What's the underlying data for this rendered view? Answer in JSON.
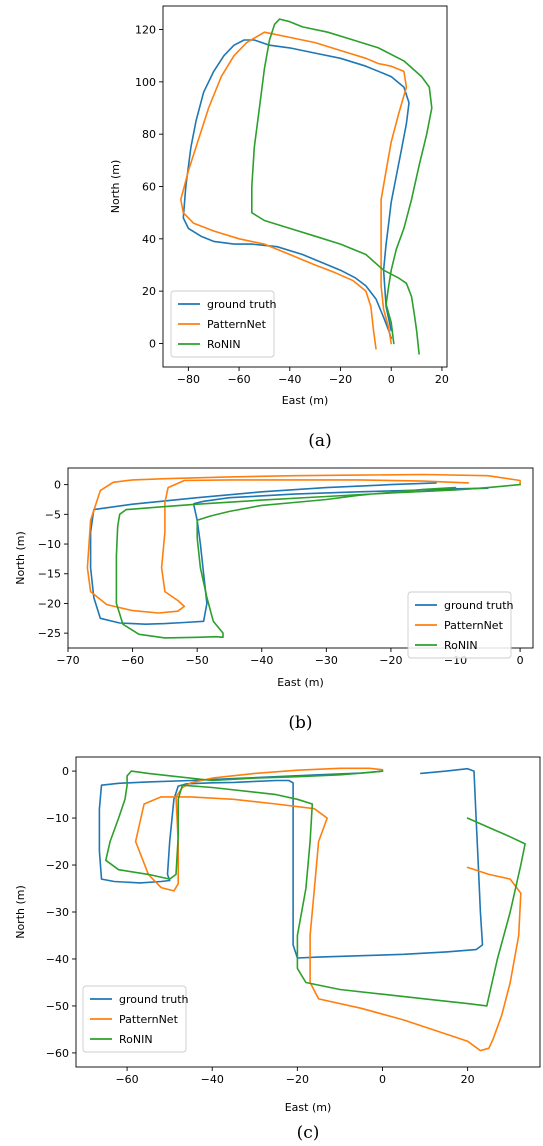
{
  "chart_data": [
    {
      "type": "line",
      "caption": "(a)",
      "xlabel": "East (m)",
      "ylabel": "North (m)",
      "xlim": [
        -90,
        22
      ],
      "ylim": [
        -9,
        129
      ],
      "xticks": [
        -80,
        -60,
        -40,
        -20,
        0,
        20
      ],
      "yticks": [
        0,
        20,
        40,
        60,
        80,
        100,
        120
      ],
      "legend_position": "lower-left",
      "series": [
        {
          "name": "ground truth",
          "color": "#1f77b4",
          "x": [
            0,
            -1,
            -3,
            -6,
            -10,
            -14,
            -20,
            -35,
            -45,
            -55,
            -62,
            -70,
            -75,
            -80,
            -82,
            -81,
            -79,
            -77,
            -74,
            -70,
            -66,
            -62,
            -58,
            -54,
            -48,
            -40,
            -30,
            -20,
            -10,
            0,
            5,
            7,
            6,
            4,
            2,
            0,
            -1,
            -2,
            -3,
            -2,
            0
          ],
          "y": [
            2,
            5,
            10,
            17,
            22,
            25,
            28,
            34,
            37,
            38,
            38,
            39,
            41,
            44,
            48,
            60,
            75,
            85,
            96,
            104,
            110,
            114,
            116,
            116,
            114,
            113,
            111,
            109,
            106,
            102,
            98,
            92,
            84,
            74,
            64,
            54,
            46,
            38,
            28,
            14,
            5
          ]
        },
        {
          "name": "PatternNet",
          "color": "#ff7f0e",
          "x": [
            -6,
            -7,
            -8,
            -10,
            -15,
            -22,
            -30,
            -40,
            -50,
            -60,
            -70,
            -78,
            -82,
            -83,
            -80,
            -76,
            -72,
            -67,
            -62,
            -57,
            -50,
            -40,
            -30,
            -20,
            -10,
            -5,
            0,
            5,
            6,
            3,
            0,
            -2,
            -4,
            -4,
            -4,
            -4,
            -3,
            -1,
            0
          ],
          "y": [
            -2,
            5,
            14,
            20,
            24,
            27,
            30,
            34,
            38,
            40,
            43,
            46,
            50,
            55,
            66,
            78,
            90,
            102,
            110,
            115,
            119,
            117,
            115,
            112,
            109,
            107,
            106,
            104,
            98,
            88,
            77,
            66,
            55,
            44,
            33,
            22,
            13,
            6,
            0
          ]
        },
        {
          "name": "RoNIN",
          "color": "#2ca02c",
          "x": [
            11,
            10,
            9,
            8,
            6,
            3,
            -3,
            -10,
            -20,
            -30,
            -40,
            -50,
            -55,
            -55,
            -54,
            -52,
            -50,
            -48,
            -46,
            -44,
            -40,
            -35,
            -25,
            -15,
            -5,
            5,
            12,
            15,
            16,
            14,
            11,
            8,
            5,
            2,
            0,
            -1,
            -2,
            0,
            1
          ],
          "y": [
            -4,
            5,
            12,
            18,
            23,
            25,
            28,
            34,
            38,
            41,
            44,
            47,
            50,
            60,
            75,
            90,
            105,
            116,
            122,
            124,
            123,
            121,
            119,
            116,
            113,
            108,
            102,
            98,
            90,
            80,
            68,
            55,
            44,
            36,
            28,
            22,
            15,
            8,
            0
          ]
        }
      ]
    },
    {
      "type": "line",
      "caption": "(b)",
      "xlabel": "East (m)",
      "ylabel": "North (m)",
      "xlim": [
        -70,
        2
      ],
      "ylim": [
        -27.5,
        2.8
      ],
      "xticks": [
        -70,
        -60,
        -50,
        -40,
        -30,
        -20,
        -10,
        0
      ],
      "yticks": [
        0,
        -5,
        -10,
        -15,
        -20,
        -25
      ],
      "legend_position": "lower-right",
      "series": [
        {
          "name": "ground truth",
          "color": "#1f77b4",
          "x": [
            -13,
            -20,
            -30,
            -40,
            -50,
            -60,
            -66,
            -66.5,
            -66.5,
            -66,
            -65,
            -62,
            -58,
            -55,
            -52,
            -49,
            -48.5,
            -49,
            -49.5,
            -50,
            -50.5,
            -50.5,
            -49,
            -45,
            -35,
            -25,
            -15,
            -8,
            -5,
            -10
          ],
          "y": [
            0.3,
            0,
            -0.5,
            -1.2,
            -2.2,
            -3.3,
            -4.2,
            -8,
            -14,
            -19,
            -22.5,
            -23.3,
            -23.5,
            -23.4,
            -23.2,
            -23,
            -20,
            -15,
            -10,
            -6,
            -3.5,
            -3.2,
            -2.8,
            -2.2,
            -1.6,
            -1.2,
            -0.9,
            -0.7,
            -0.6,
            -0.7
          ]
        },
        {
          "name": "PatternNet",
          "color": "#ff7f0e",
          "x": [
            -8,
            -15,
            -25,
            -35,
            -45,
            -52,
            -54.5,
            -55,
            -55,
            -55.5,
            -55,
            -53,
            -52,
            -53,
            -56,
            -60,
            -64,
            -66.5,
            -67,
            -66.5,
            -65,
            -63,
            -60,
            -55,
            -45,
            -35,
            -25,
            -15,
            -5,
            0,
            0
          ],
          "y": [
            0.3,
            0.6,
            0.8,
            0.8,
            0.8,
            0.7,
            -0.5,
            -3,
            -8,
            -14,
            -18,
            -19.5,
            -20.5,
            -21.3,
            -21.6,
            -21.2,
            -20.2,
            -18,
            -14,
            -6,
            -1,
            0.4,
            0.8,
            1.0,
            1.3,
            1.5,
            1.6,
            1.7,
            1.5,
            0.7,
            0
          ]
        },
        {
          "name": "RoNIN",
          "color": "#2ca02c",
          "x": [
            -10,
            -15,
            -20,
            -25,
            -30,
            -35,
            -40,
            -45,
            -48,
            -50,
            -50,
            -49.5,
            -48.5,
            -47.5,
            -46,
            -46,
            -47,
            -50,
            -55,
            -59,
            -61.5,
            -62.5,
            -62.5,
            -62.3,
            -62,
            -61,
            -55,
            -50,
            -40,
            -30,
            -20,
            -10,
            -5,
            -2,
            0
          ],
          "y": [
            -0.5,
            -0.8,
            -1.3,
            -1.8,
            -2.5,
            -3.0,
            -3.5,
            -4.5,
            -5.3,
            -6,
            -9,
            -14,
            -19,
            -23,
            -25,
            -25.7,
            -25.6,
            -25.7,
            -25.8,
            -25.2,
            -23.5,
            -20,
            -12,
            -7,
            -5,
            -4.2,
            -3.7,
            -3.3,
            -2.6,
            -2.0,
            -1.4,
            -0.9,
            -0.5,
            -0.2,
            0
          ]
        }
      ]
    },
    {
      "type": "line",
      "caption": "(c)",
      "xlabel": "East (m)",
      "ylabel": "North (m)",
      "xlim": [
        -72,
        37
      ],
      "ylim": [
        -63,
        3
      ],
      "xticks": [
        -60,
        -40,
        -20,
        0,
        20
      ],
      "yticks": [
        0,
        -10,
        -20,
        -30,
        -40,
        -50,
        -60
      ],
      "legend_position": "lower-left",
      "series": [
        {
          "name": "ground truth",
          "color": "#1f77b4",
          "x": [
            9,
            15,
            20,
            21.5,
            22,
            22.5,
            23,
            23.5,
            22,
            15,
            5,
            -5,
            -15,
            -20,
            -21,
            -21,
            -21,
            -21,
            -21,
            -22,
            -25,
            -30,
            -35,
            -40,
            -46,
            -48,
            -49,
            -50,
            -50.5,
            -50,
            -52,
            -57,
            -63,
            -66,
            -66.5,
            -66.5,
            -66,
            -62,
            -55,
            -45,
            -35,
            -25,
            -15,
            -5,
            0
          ],
          "y": [
            -0.5,
            0.0,
            0.5,
            0,
            -10,
            -20,
            -30,
            -37,
            -38,
            -38.5,
            -39,
            -39.3,
            -39.6,
            -39.8,
            -37,
            -28,
            -18,
            -8,
            -2.5,
            -2.0,
            -2.0,
            -2.2,
            -2.4,
            -2.5,
            -2.7,
            -3.2,
            -6,
            -15,
            -22,
            -23.3,
            -23.5,
            -23.8,
            -23.5,
            -23,
            -17,
            -8,
            -3,
            -2.6,
            -2.3,
            -2.0,
            -1.6,
            -1.2,
            -0.8,
            -0.4,
            0
          ]
        },
        {
          "name": "PatternNet",
          "color": "#ff7f0e",
          "x": [
            20,
            25,
            30,
            32.5,
            32,
            30,
            28,
            26,
            25,
            23,
            20,
            15,
            5,
            -5,
            -15,
            -17,
            -17,
            -16,
            -15,
            -13,
            -16,
            -25,
            -35,
            -45,
            -52,
            -56,
            -58,
            -55,
            -52,
            -49,
            -48,
            -48,
            -48.5,
            -47,
            -45,
            -40,
            -30,
            -20,
            -10,
            -3,
            0,
            0
          ],
          "y": [
            -20.5,
            -22,
            -23,
            -26,
            -35,
            -45,
            -52,
            -57,
            -59,
            -59.5,
            -57.5,
            -56,
            -53,
            -50.5,
            -48.5,
            -45,
            -35,
            -25,
            -15,
            -10,
            -8,
            -7,
            -6,
            -5.5,
            -5.5,
            -7,
            -15,
            -22,
            -24.8,
            -25.5,
            -24,
            -15,
            -5.5,
            -3.5,
            -2.5,
            -1.5,
            -0.5,
            0.2,
            0.6,
            0.6,
            0.3,
            0
          ]
        },
        {
          "name": "RoNIN",
          "color": "#2ca02c",
          "x": [
            20,
            25,
            30,
            33.5,
            32.5,
            30,
            27,
            25,
            24.5,
            20,
            10,
            0,
            -10,
            -18,
            -20,
            -20,
            -18,
            -17,
            -16.5,
            -20,
            -25,
            -30,
            -40,
            -47,
            -48,
            -48,
            -48.5,
            -50,
            -55,
            -62,
            -65,
            -64,
            -62,
            -60.5,
            -60,
            -60,
            -59,
            -55,
            -50,
            -40,
            -30,
            -20,
            -10,
            -3,
            0
          ],
          "y": [
            -10,
            -12,
            -14,
            -15.5,
            -20,
            -30,
            -40,
            -48,
            -50,
            -49.5,
            -48.5,
            -47.5,
            -46.5,
            -45,
            -42,
            -35,
            -25,
            -15,
            -7,
            -6,
            -5,
            -4.5,
            -3.5,
            -3,
            -6,
            -14,
            -22,
            -23,
            -22,
            -21,
            -19,
            -15,
            -10,
            -6,
            -3,
            -1,
            0,
            -0.5,
            -1,
            -2,
            -1.5,
            -1.2,
            -0.8,
            -0.3,
            0
          ]
        }
      ]
    }
  ]
}
